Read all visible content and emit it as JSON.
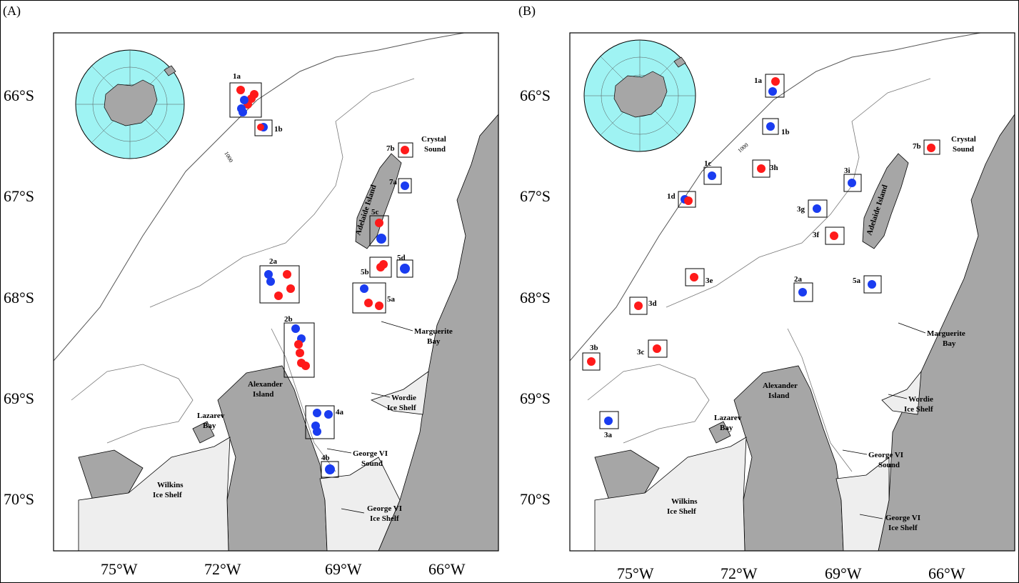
{
  "panel_a": {
    "label": "(A)",
    "lat_ticks": [
      "66°S",
      "67°S",
      "68°S",
      "69°S",
      "70°S"
    ],
    "lon_ticks": [
      "75°W",
      "72°W",
      "69°W",
      "66°W"
    ],
    "places": {
      "adelaide": "Adelaide Island",
      "crystal1": "Crystal",
      "crystal2": "Sound",
      "marg1": "Marguerite",
      "marg2": "Bay",
      "alex1": "Alexander",
      "alex2": "Island",
      "wordie1": "Wordie",
      "wordie2": "Ice Shelf",
      "lazarev1": "Lazarev",
      "lazarev2": "Bay",
      "gvis1": "George VI",
      "gvis2": "Sound",
      "wilkins1": "Wilkins",
      "wilkins2": "Ice Shelf",
      "gvish1": "George VI",
      "gvish2": "Ice Shelf",
      "contour": "1000"
    },
    "sites": [
      "1a",
      "1b",
      "7b",
      "7a",
      "5c",
      "5d",
      "5b",
      "2a",
      "5a",
      "2b",
      "4a",
      "4b"
    ]
  },
  "panel_b": {
    "label": "(B)",
    "lat_ticks": [
      "66°S",
      "67°S",
      "68°S",
      "69°S",
      "70°S"
    ],
    "lon_ticks": [
      "75°W",
      "72°W",
      "69°W",
      "66°W"
    ],
    "places": {
      "adelaide": "Adelaide Island",
      "crystal1": "Crystal",
      "crystal2": "Sound",
      "marg1": "Marguerite",
      "marg2": "Bay",
      "alex1": "Alexander",
      "alex2": "Island",
      "wordie1": "Wordie",
      "wordie2": "Ice Shelf",
      "lazarev1": "Lazarev",
      "lazarev2": "Bay",
      "gvis1": "George VI",
      "gvis2": "Sound",
      "wilkins1": "Wilkins",
      "wilkins2": "Ice Shelf",
      "gvish1": "George VI",
      "gvish2": "Ice Shelf",
      "contour": "1000"
    },
    "sites": [
      "1a",
      "1b",
      "7b",
      "1c",
      "3h",
      "3i",
      "1d",
      "3g",
      "3f",
      "3e",
      "5a",
      "2a",
      "3d",
      "3c",
      "3b",
      "3a"
    ]
  },
  "colors": {
    "land": "#a6a6a6",
    "iceshelf": "#eeeeee",
    "ocean_inset": "#9ff3f3",
    "red": "#ff1a1a",
    "blue": "#1a3cf0"
  }
}
